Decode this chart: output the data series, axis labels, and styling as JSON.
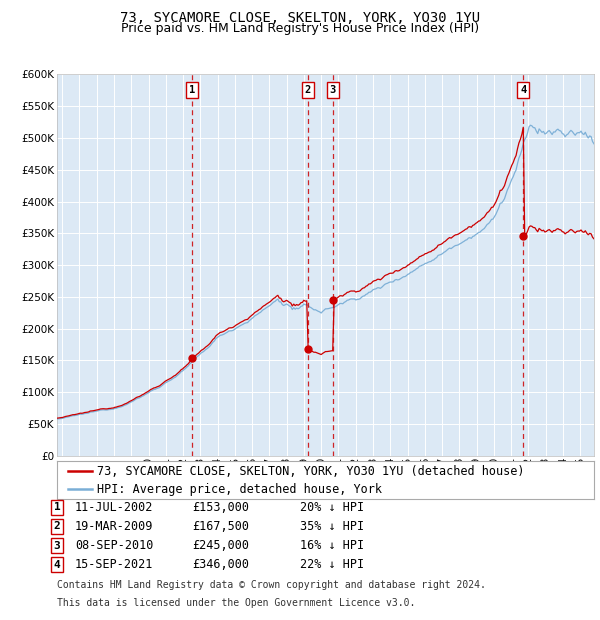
{
  "title": "73, SYCAMORE CLOSE, SKELTON, YORK, YO30 1YU",
  "subtitle": "Price paid vs. HM Land Registry's House Price Index (HPI)",
  "ylim": [
    0,
    600000
  ],
  "yticks": [
    0,
    50000,
    100000,
    150000,
    200000,
    250000,
    300000,
    350000,
    400000,
    450000,
    500000,
    550000,
    600000
  ],
  "xlim_start": 1994.7,
  "xlim_end": 2025.8,
  "plot_bg_color": "#dce9f5",
  "fig_bg_color": "#ffffff",
  "grid_color": "#ffffff",
  "hpi_color": "#7aaed6",
  "price_color": "#cc0000",
  "vline_color": "#cc0000",
  "purchases": [
    {
      "num": 1,
      "date_num": 2002.53,
      "price": 153000,
      "date_str": "11-JUL-2002",
      "price_str": "£153,000",
      "pct": "20% ↓ HPI"
    },
    {
      "num": 2,
      "date_num": 2009.22,
      "price": 167500,
      "date_str": "19-MAR-2009",
      "price_str": "£167,500",
      "pct": "35% ↓ HPI"
    },
    {
      "num": 3,
      "date_num": 2010.68,
      "price": 245000,
      "date_str": "08-SEP-2010",
      "price_str": "£245,000",
      "pct": "16% ↓ HPI"
    },
    {
      "num": 4,
      "date_num": 2021.71,
      "price": 346000,
      "date_str": "15-SEP-2021",
      "price_str": "£346,000",
      "pct": "22% ↓ HPI"
    }
  ],
  "legend1": "73, SYCAMORE CLOSE, SKELTON, YORK, YO30 1YU (detached house)",
  "legend2": "HPI: Average price, detached house, York",
  "footnote1": "Contains HM Land Registry data © Crown copyright and database right 2024.",
  "footnote2": "This data is licensed under the Open Government Licence v3.0.",
  "title_fontsize": 10,
  "subtitle_fontsize": 9,
  "tick_fontsize": 7.5,
  "legend_fontsize": 8.5,
  "table_fontsize": 8.5,
  "footnote_fontsize": 7
}
